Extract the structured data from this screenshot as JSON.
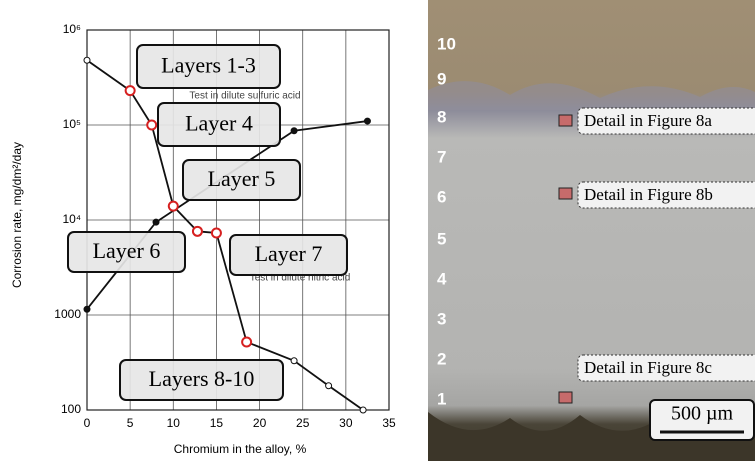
{
  "chart_data": {
    "type": "line",
    "ylabel": "Corrosion rate, mg/dm²/day",
    "xlabel": "Chromium in the alloy, %",
    "xlim": [
      0,
      35
    ],
    "xticks": [
      0,
      5,
      10,
      15,
      20,
      25,
      30,
      35
    ],
    "ylim": [
      100,
      1000000
    ],
    "log_y": true,
    "yticks": [
      100,
      1000,
      {
        "value": 10000,
        "label": "10⁴"
      },
      {
        "value": 100000,
        "label": "10⁵"
      },
      {
        "value": 1000000,
        "label": "10⁶"
      }
    ],
    "grid": true,
    "series": [
      {
        "color": "#111111",
        "marker": "open",
        "line": true,
        "x": [
          0,
          5,
          7.5,
          10,
          12.8,
          15,
          18.5,
          24,
          28,
          32
        ],
        "values": [
          480000,
          230000,
          100000,
          14000,
          7600,
          7300,
          520,
          330,
          180,
          100
        ]
      },
      {
        "color": "#111111",
        "marker": "filled",
        "line": true,
        "x": [
          0,
          8,
          24,
          32.5
        ],
        "values": [
          1150,
          9500,
          87000,
          110000
        ]
      },
      {
        "color": "#d62020",
        "marker": "open",
        "line": false,
        "x": [
          5,
          7.5,
          10,
          12.8,
          15,
          18.5
        ],
        "values": [
          230000,
          100000,
          14000,
          7600,
          7300,
          520
        ]
      }
    ],
    "annotations": [
      "Test in dilute sulfuric acid",
      "Test in dilute nitric acid"
    ],
    "callouts": [
      "Layers 1-3",
      "Layer 4",
      "Layer 5",
      "Layer 6",
      "Layer 7",
      "Layers 8-10"
    ]
  },
  "micrograph": {
    "layer_labels": [
      "10",
      "9",
      "8",
      "7",
      "6",
      "5",
      "4",
      "3",
      "2",
      "1"
    ],
    "details": [
      "Detail in Figure 8a",
      "Detail in Figure 8b",
      "Detail in Figure 8c"
    ],
    "scale_bar": "500 µm"
  }
}
